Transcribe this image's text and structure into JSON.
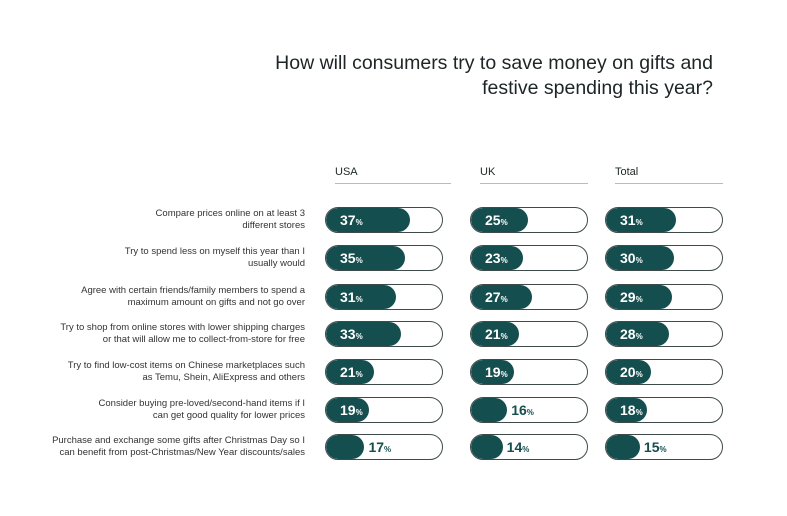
{
  "title_lines": [
    "How will consumers try to save money on gifts and",
    "festive spending this year?"
  ],
  "chart_data": {
    "type": "bar",
    "title": "How will consumers try to save money on gifts and festive spending this year?",
    "unit": "%",
    "ylim": [
      0,
      100
    ],
    "categories": [
      "Compare prices online on at least 3 different stores",
      "Try to spend less on myself this year than I usually would",
      "Agree with certain friends/family members to spend a maximum amount on gifts and not go over",
      "Try to shop from online stores with lower shipping charges or that will allow me to collect-from-store for free",
      "Try to find low-cost items on Chinese marketplaces such as Temu, Shein, AliExpress and others",
      "Consider buying pre-loved/second-hand items if I can get good quality for lower prices",
      "Purchase and exchange some gifts after Christmas Day so I can benefit from post-Christmas/New Year discounts/sales"
    ],
    "category_lines": [
      [
        "Compare prices online on at least 3",
        "different stores"
      ],
      [
        "Try to spend less on myself this year than I",
        "usually would"
      ],
      [
        "Agree with certain friends/family members to spend a",
        "maximum amount on gifts and not go over"
      ],
      [
        "Try to shop from online stores with lower shipping charges",
        "or that will allow me to collect-from-store for free"
      ],
      [
        "Try to find low-cost items on Chinese marketplaces such",
        "as Temu, Shein, AliExpress and others"
      ],
      [
        "Consider buying pre-loved/second-hand items if I",
        "can get good quality for lower prices"
      ],
      [
        "Purchase and exchange some gifts after Christmas Day so I",
        "can benefit from post-Christmas/New Year discounts/sales"
      ]
    ],
    "series": [
      {
        "name": "USA",
        "values": [
          37,
          35,
          31,
          33,
          21,
          19,
          17
        ]
      },
      {
        "name": "UK",
        "values": [
          25,
          23,
          27,
          21,
          19,
          16,
          14
        ]
      },
      {
        "name": "Total",
        "values": [
          31,
          30,
          29,
          28,
          20,
          18,
          15
        ]
      }
    ]
  },
  "colors": {
    "fill": "#154e4e",
    "outline": "#3f4a4b",
    "label_inside": "#ffffff"
  }
}
